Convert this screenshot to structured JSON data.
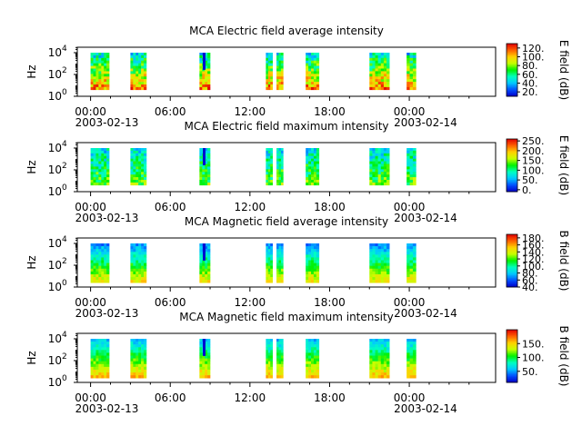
{
  "colors": {
    "axis": "#000000",
    "background": "#ffffff",
    "colormap": [
      "#0000c8",
      "#0050ff",
      "#00c8ff",
      "#00ffc0",
      "#00f000",
      "#c8ff00",
      "#ffd000",
      "#ff6000",
      "#e00000"
    ]
  },
  "chart_data": [
    {
      "type": "heatmap",
      "title": "MCA  Electric field average intensity",
      "ylabel": "Hz",
      "cbar_label": "E field (dB)",
      "cbar_ticks": [
        "20.",
        "40.",
        "60.",
        "80.",
        "100.",
        "120."
      ],
      "cbar_range": [
        10,
        130
      ],
      "ylim_log10": [
        0,
        4.5
      ],
      "yticks": [
        "10",
        "10",
        "10"
      ],
      "ytick_exponents": [
        "0",
        "2",
        "4"
      ],
      "xlim_hours": [
        -1,
        30.5
      ],
      "xticks": [
        "00:00",
        "06:00",
        "12:00",
        "18:00",
        "00:00"
      ],
      "xdates": [
        "2003-02-13",
        "2003-02-14"
      ],
      "scale": "log",
      "profile": "avg"
    },
    {
      "type": "heatmap",
      "title": "MCA  Electric field maximum intensity",
      "ylabel": "Hz",
      "cbar_label": "E field (dB)",
      "cbar_ticks": [
        "0.",
        "50.",
        "100.",
        "150.",
        "200.",
        "250."
      ],
      "cbar_range": [
        -10,
        260
      ],
      "ylim_log10": [
        0,
        4.5
      ],
      "yticks": [
        "10",
        "10",
        "10"
      ],
      "ytick_exponents": [
        "0",
        "2",
        "4"
      ],
      "xlim_hours": [
        -1,
        30.5
      ],
      "xticks": [
        "00:00",
        "06:00",
        "12:00",
        "18:00",
        "00:00"
      ],
      "xdates": [
        "2003-02-13",
        "2003-02-14"
      ],
      "scale": "log",
      "profile": "emax"
    },
    {
      "type": "heatmap",
      "title": "MCA  Magnetic field average intensity",
      "ylabel": "Hz",
      "cbar_label": "B field (dB)",
      "cbar_ticks": [
        "40.",
        "60.",
        "80.",
        "100.",
        "120.",
        "140.",
        "160.",
        "180."
      ],
      "cbar_range": [
        40,
        190
      ],
      "ylim_log10": [
        0,
        4.5
      ],
      "yticks": [
        "10",
        "10",
        "10"
      ],
      "ytick_exponents": [
        "0",
        "2",
        "4"
      ],
      "xlim_hours": [
        -1,
        30.5
      ],
      "xticks": [
        "00:00",
        "06:00",
        "12:00",
        "18:00",
        "00:00"
      ],
      "xdates": [
        "2003-02-13",
        "2003-02-14"
      ],
      "scale": "log",
      "profile": "bavg"
    },
    {
      "type": "heatmap",
      "title": "MCA  Magnetic field maximum intensity",
      "ylabel": "Hz",
      "cbar_label": "B field (dB)",
      "cbar_ticks": [
        "50.",
        "100.",
        "150."
      ],
      "cbar_range": [
        10,
        200
      ],
      "ylim_log10": [
        0,
        4.5
      ],
      "yticks": [
        "10",
        "10",
        "10"
      ],
      "ytick_exponents": [
        "0",
        "2",
        "4"
      ],
      "xlim_hours": [
        -1,
        30.5
      ],
      "xticks": [
        "00:00",
        "06:00",
        "12:00",
        "18:00",
        "00:00"
      ],
      "xdates": [
        "2003-02-13",
        "2003-02-14"
      ],
      "scale": "log",
      "profile": "bmax"
    }
  ],
  "data_segments_hours": [
    [
      0,
      1.4
    ],
    [
      3.0,
      4.2
    ],
    [
      8.2,
      9.0
    ],
    [
      13.2,
      13.7
    ],
    [
      14.0,
      14.5
    ],
    [
      16.2,
      17.2
    ],
    [
      21.0,
      22.5
    ],
    [
      23.8,
      24.5
    ]
  ]
}
